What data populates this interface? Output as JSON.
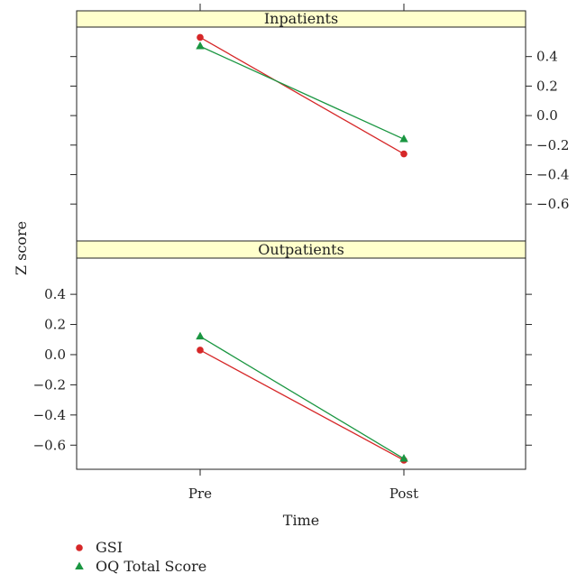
{
  "chart_data": {
    "type": "line",
    "ylabel": "Z score",
    "xlabel": "Time",
    "categories": [
      "Pre",
      "Post"
    ],
    "panels": [
      {
        "name": "Inpatients",
        "ylim": [
          -0.85,
          0.6
        ],
        "yticks": [
          0.4,
          0.2,
          0.0,
          -0.2,
          -0.4,
          -0.6
        ],
        "yaxis_side": "right",
        "series": [
          {
            "name": "GSI",
            "values": [
              0.53,
              -0.26
            ]
          },
          {
            "name": "OQ Total Score",
            "values": [
              0.47,
              -0.16
            ]
          }
        ]
      },
      {
        "name": "Outpatients",
        "ylim": [
          -0.76,
          0.64
        ],
        "yticks": [
          0.4,
          0.2,
          0.0,
          -0.2,
          -0.4,
          -0.6
        ],
        "yaxis_side": "left",
        "series": [
          {
            "name": "GSI",
            "values": [
              0.03,
              -0.7
            ]
          },
          {
            "name": "OQ Total Score",
            "values": [
              0.12,
              -0.69
            ]
          }
        ]
      }
    ],
    "legend": {
      "position": "bottom-left",
      "items": [
        {
          "name": "GSI",
          "color": "#d62728",
          "marker": "circle"
        },
        {
          "name": "OQ Total Score",
          "color": "#1a9641",
          "marker": "triangle"
        }
      ]
    },
    "colors": {
      "GSI": "#d62728",
      "OQ Total Score": "#1a9641",
      "strip": "#ffffcc"
    }
  }
}
